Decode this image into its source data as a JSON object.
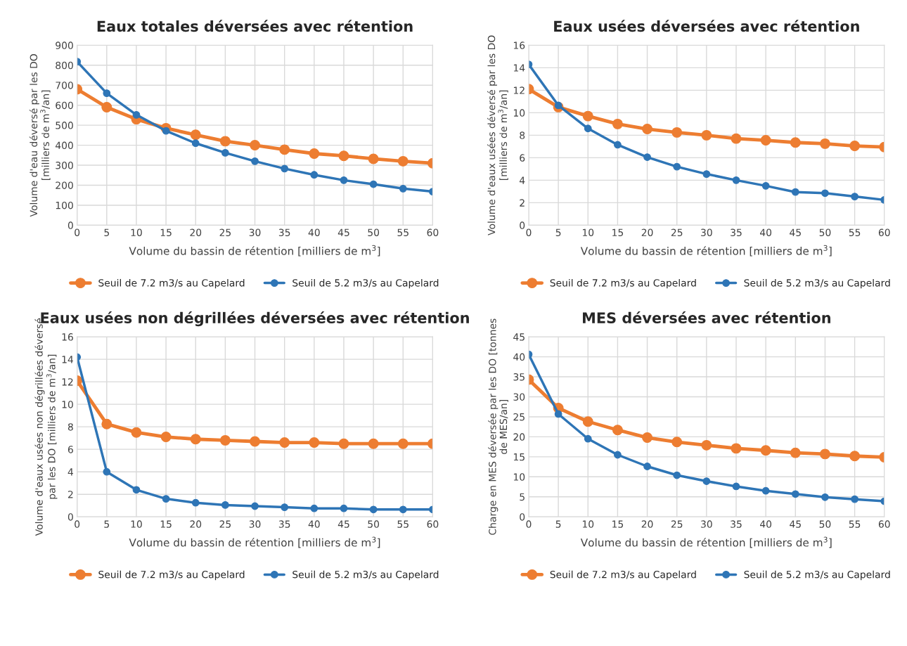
{
  "chart_data": [
    {
      "type": "line",
      "title": "Eaux totales déversées avec rétention",
      "xlabel": "Volume du bassin de rétention [milliers de m$^{3}$]",
      "ylabel": "Volume d'eau déversé par les DO\n[milliers de m$^{3}$/an]",
      "x": [
        0,
        5,
        10,
        15,
        20,
        25,
        30,
        35,
        40,
        45,
        50,
        55,
        60
      ],
      "xlim": [
        0,
        60
      ],
      "xticks": [
        0,
        5,
        10,
        15,
        20,
        25,
        30,
        35,
        40,
        45,
        50,
        55,
        60
      ],
      "ylim": [
        0,
        900
      ],
      "yticks": [
        0,
        100,
        200,
        300,
        400,
        500,
        600,
        700,
        800,
        900
      ],
      "grid": true,
      "legend": "bottom",
      "marker": "circle",
      "line_style": "solid",
      "series": [
        {
          "name": "Seuil de 7.2 m3/s au Capelard",
          "color": "#ed7d31",
          "values": [
            680,
            590,
            530,
            485,
            452,
            420,
            400,
            378,
            358,
            347,
            332,
            320,
            310
          ]
        },
        {
          "name": "Seuil de 5.2 m3/s au Capelard",
          "color": "#2e75b6",
          "values": [
            818,
            660,
            552,
            472,
            410,
            362,
            320,
            283,
            252,
            225,
            205,
            183,
            168
          ]
        }
      ]
    },
    {
      "type": "line",
      "title": "Eaux usées déversées avec rétention",
      "xlabel": "Volume du bassin de rétention [milliers de m$^{3}$]",
      "ylabel": "Volume d'eaux usées déversé par les DO\n[milliers de m$^{3}$/an]",
      "x": [
        0,
        5,
        10,
        15,
        20,
        25,
        30,
        35,
        40,
        45,
        50,
        55,
        60
      ],
      "xlim": [
        0,
        60
      ],
      "xticks": [
        0,
        5,
        10,
        15,
        20,
        25,
        30,
        35,
        40,
        45,
        50,
        55,
        60
      ],
      "ylim": [
        0,
        16
      ],
      "yticks": [
        0,
        2,
        4,
        6,
        8,
        10,
        12,
        14,
        16
      ],
      "grid": true,
      "legend": "bottom",
      "marker": "circle",
      "line_style": "solid",
      "series": [
        {
          "name": "Seuil de 7.2 m3/s au Capelard",
          "color": "#ed7d31",
          "values": [
            12.1,
            10.5,
            9.7,
            9.0,
            8.55,
            8.25,
            8.0,
            7.7,
            7.55,
            7.35,
            7.25,
            7.05,
            6.95
          ]
        },
        {
          "name": "Seuil de 5.2 m3/s au Capelard",
          "color": "#2e75b6",
          "values": [
            14.3,
            10.65,
            8.6,
            7.15,
            6.05,
            5.2,
            4.55,
            4.0,
            3.5,
            2.95,
            2.85,
            2.55,
            2.25
          ]
        }
      ]
    },
    {
      "type": "line",
      "title": "Eaux usées non dégrillées déversées avec rétention",
      "xlabel": "Volume du bassin de rétention [milliers de m$^{3}$]",
      "ylabel": "Volume d'eaux usées non dégrillées déversé\npar les DO [milliers de m$^{3}$/an]",
      "x": [
        0,
        5,
        10,
        15,
        20,
        25,
        30,
        35,
        40,
        45,
        50,
        55,
        60
      ],
      "xlim": [
        0,
        60
      ],
      "xticks": [
        0,
        5,
        10,
        15,
        20,
        25,
        30,
        35,
        40,
        45,
        50,
        55,
        60
      ],
      "ylim": [
        0,
        16
      ],
      "yticks": [
        0,
        2,
        4,
        6,
        8,
        10,
        12,
        14,
        16
      ],
      "grid": true,
      "legend": "bottom",
      "marker": "circle",
      "line_style": "solid",
      "series": [
        {
          "name": "Seuil de 7.2 m3/s au Capelard",
          "color": "#ed7d31",
          "values": [
            12.1,
            8.25,
            7.5,
            7.1,
            6.9,
            6.8,
            6.7,
            6.6,
            6.6,
            6.5,
            6.5,
            6.5,
            6.5
          ]
        },
        {
          "name": "Seuil de 5.2 m3/s au Capelard",
          "color": "#2e75b6",
          "values": [
            14.2,
            4.0,
            2.4,
            1.6,
            1.25,
            1.05,
            0.95,
            0.85,
            0.75,
            0.75,
            0.65,
            0.65,
            0.65
          ]
        }
      ]
    },
    {
      "type": "line",
      "title": "MES déversées avec rétention",
      "xlabel": "Volume du bassin de rétention [milliers de m$^{3}$]",
      "ylabel": "Charge en MES déversée par les DO [tonnes\nde MES/an]",
      "x": [
        0,
        5,
        10,
        15,
        20,
        25,
        30,
        35,
        40,
        45,
        50,
        55,
        60
      ],
      "xlim": [
        0,
        60
      ],
      "xticks": [
        0,
        5,
        10,
        15,
        20,
        25,
        30,
        35,
        40,
        45,
        50,
        55,
        60
      ],
      "ylim": [
        0,
        45
      ],
      "yticks": [
        0,
        5,
        10,
        15,
        20,
        25,
        30,
        35,
        40,
        45
      ],
      "grid": true,
      "legend": "bottom",
      "marker": "circle",
      "line_style": "solid",
      "series": [
        {
          "name": "Seuil de 7.2 m3/s au Capelard",
          "color": "#ed7d31",
          "values": [
            34.3,
            27.2,
            23.8,
            21.7,
            19.8,
            18.7,
            17.9,
            17.1,
            16.6,
            16.0,
            15.7,
            15.2,
            14.9
          ]
        },
        {
          "name": "Seuil de 5.2 m3/s au Capelard",
          "color": "#2e75b6",
          "values": [
            40.6,
            25.7,
            19.5,
            15.5,
            12.6,
            10.4,
            8.9,
            7.6,
            6.5,
            5.7,
            4.9,
            4.4,
            3.9
          ]
        }
      ]
    }
  ]
}
